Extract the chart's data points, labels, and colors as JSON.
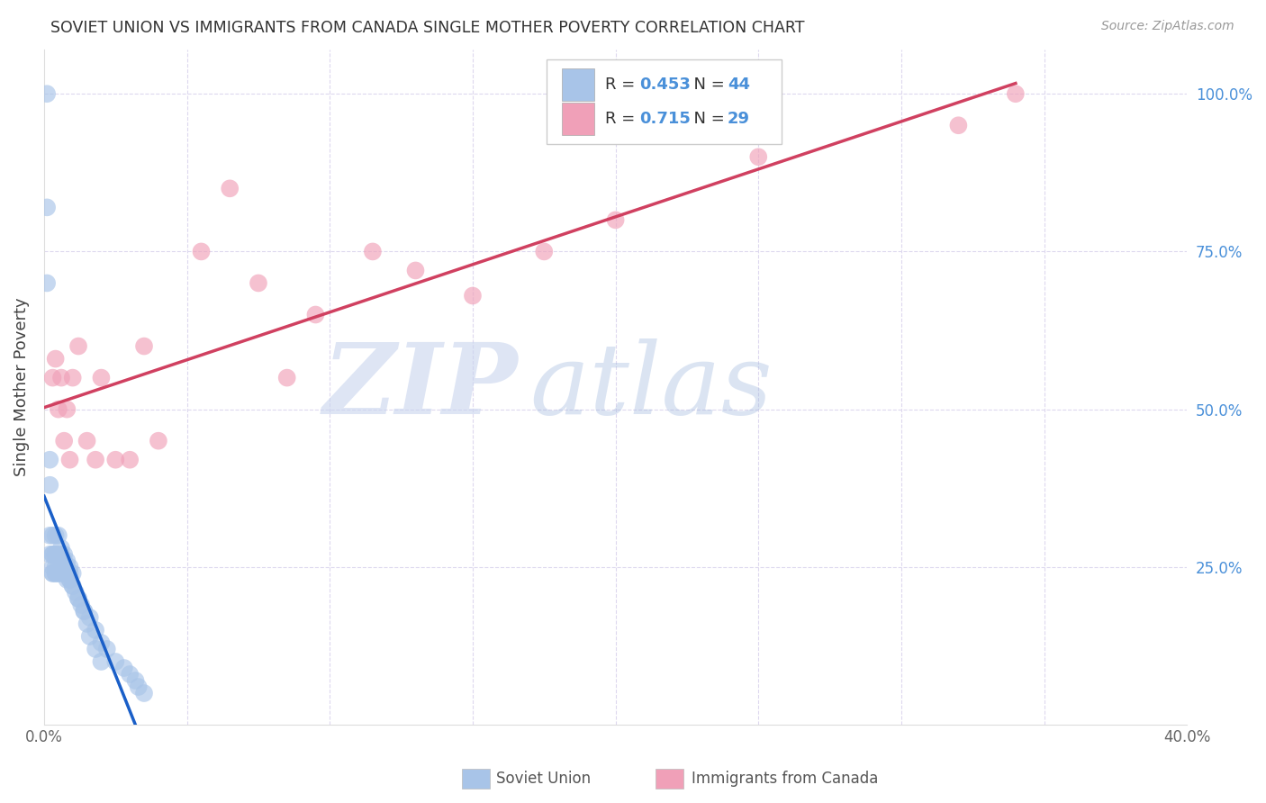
{
  "title": "SOVIET UNION VS IMMIGRANTS FROM CANADA SINGLE MOTHER POVERTY CORRELATION CHART",
  "source": "Source: ZipAtlas.com",
  "ylabel": "Single Mother Poverty",
  "xlim": [
    0.0,
    0.4
  ],
  "ylim": [
    0.0,
    1.07
  ],
  "soviet_R": 0.453,
  "soviet_N": 44,
  "canada_R": 0.715,
  "canada_N": 29,
  "soviet_color": "#a8c4e8",
  "soviet_line_color": "#1a5fc8",
  "canada_color": "#f0a0b8",
  "canada_line_color": "#d04060",
  "soviet_x": [
    0.001,
    0.001,
    0.001,
    0.002,
    0.002,
    0.002,
    0.002,
    0.003,
    0.003,
    0.003,
    0.003,
    0.003,
    0.004,
    0.004,
    0.004,
    0.004,
    0.004,
    0.005,
    0.005,
    0.005,
    0.005,
    0.006,
    0.006,
    0.006,
    0.007,
    0.007,
    0.007,
    0.007,
    0.008,
    0.008,
    0.008,
    0.009,
    0.009,
    0.009,
    0.01,
    0.01,
    0.011,
    0.012,
    0.013,
    0.014,
    0.015,
    0.016,
    0.018,
    0.02
  ],
  "soviet_y": [
    1.0,
    0.82,
    0.7,
    0.42,
    0.38,
    0.3,
    0.27,
    0.3,
    0.27,
    0.27,
    0.25,
    0.24,
    0.3,
    0.27,
    0.27,
    0.25,
    0.24,
    0.3,
    0.27,
    0.25,
    0.24,
    0.28,
    0.27,
    0.25,
    0.27,
    0.26,
    0.25,
    0.24,
    0.26,
    0.25,
    0.24,
    0.25,
    0.24,
    0.23,
    0.24,
    0.22,
    0.21,
    0.2,
    0.19,
    0.18,
    0.16,
    0.14,
    0.12,
    0.1
  ],
  "soviet_x_extra": [
    0.003,
    0.004,
    0.005,
    0.006,
    0.007,
    0.008,
    0.009,
    0.01,
    0.012,
    0.014,
    0.016,
    0.018,
    0.02,
    0.022,
    0.025,
    0.028,
    0.03,
    0.032,
    0.033,
    0.035
  ],
  "soviet_y_extra": [
    0.24,
    0.24,
    0.24,
    0.24,
    0.24,
    0.23,
    0.23,
    0.22,
    0.2,
    0.18,
    0.17,
    0.15,
    0.13,
    0.12,
    0.1,
    0.09,
    0.08,
    0.07,
    0.06,
    0.05
  ],
  "canada_x": [
    0.003,
    0.004,
    0.005,
    0.006,
    0.007,
    0.008,
    0.009,
    0.01,
    0.012,
    0.015,
    0.018,
    0.02,
    0.025,
    0.03,
    0.035,
    0.04,
    0.055,
    0.065,
    0.075,
    0.085,
    0.095,
    0.115,
    0.13,
    0.15,
    0.175,
    0.2,
    0.25,
    0.32,
    0.34
  ],
  "canada_y": [
    0.55,
    0.58,
    0.5,
    0.55,
    0.45,
    0.5,
    0.42,
    0.55,
    0.6,
    0.45,
    0.42,
    0.55,
    0.42,
    0.42,
    0.6,
    0.45,
    0.75,
    0.85,
    0.7,
    0.55,
    0.65,
    0.75,
    0.72,
    0.68,
    0.75,
    0.8,
    0.9,
    0.95,
    1.0
  ],
  "background_color": "#ffffff",
  "grid_color": "#ddd8ee",
  "right_tick_color": "#4a90d9",
  "title_color": "#333333",
  "source_color": "#999999",
  "label_color": "#444444"
}
